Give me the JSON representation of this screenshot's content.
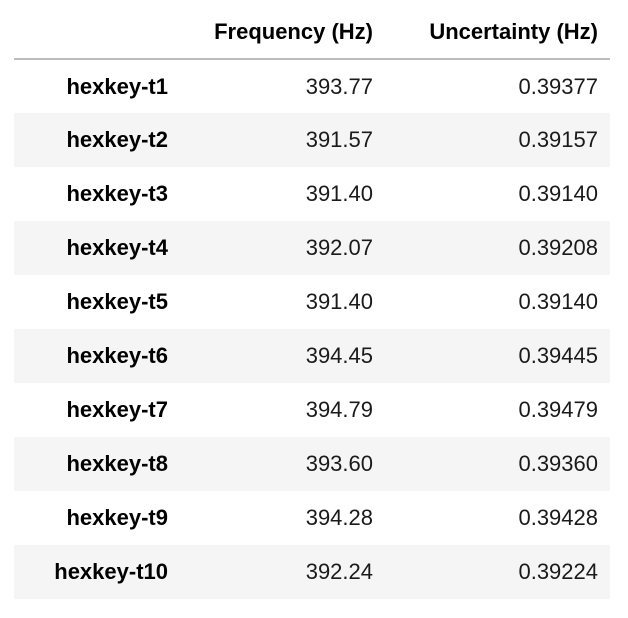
{
  "table": {
    "columns": [
      "",
      "Frequency (Hz)",
      "Uncertainty (Hz)"
    ],
    "rows": [
      {
        "index": "hexkey-t1",
        "frequency": "393.77",
        "uncertainty": "0.39377"
      },
      {
        "index": "hexkey-t2",
        "frequency": "391.57",
        "uncertainty": "0.39157"
      },
      {
        "index": "hexkey-t3",
        "frequency": "391.40",
        "uncertainty": "0.39140"
      },
      {
        "index": "hexkey-t4",
        "frequency": "392.07",
        "uncertainty": "0.39208"
      },
      {
        "index": "hexkey-t5",
        "frequency": "391.40",
        "uncertainty": "0.39140"
      },
      {
        "index": "hexkey-t6",
        "frequency": "394.45",
        "uncertainty": "0.39445"
      },
      {
        "index": "hexkey-t7",
        "frequency": "394.79",
        "uncertainty": "0.39479"
      },
      {
        "index": "hexkey-t8",
        "frequency": "393.60",
        "uncertainty": "0.39360"
      },
      {
        "index": "hexkey-t9",
        "frequency": "394.28",
        "uncertainty": "0.39428"
      },
      {
        "index": "hexkey-t10",
        "frequency": "392.24",
        "uncertainty": "0.39224"
      }
    ]
  },
  "colors": {
    "stripe": "#f5f5f5",
    "header_rule": "#bdbdbd",
    "text": "#000000"
  }
}
